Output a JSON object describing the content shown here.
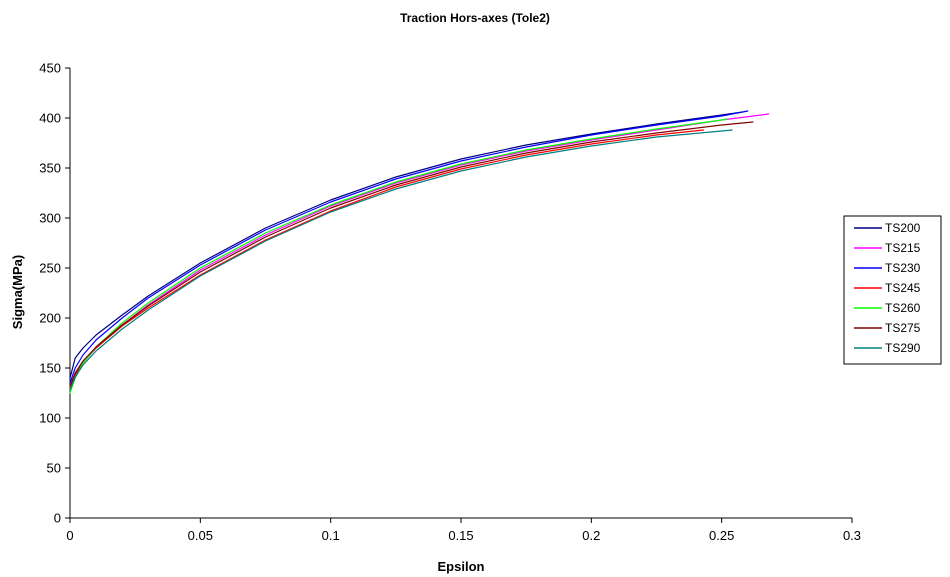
{
  "chart_data": {
    "type": "line",
    "title": "Traction Hors-axes (Tole2)",
    "xlabel": "Epsilon",
    "ylabel": "Sigma(MPa)",
    "xlim": [
      0,
      0.3
    ],
    "ylim": [
      0,
      450
    ],
    "x_ticks": [
      0,
      0.05,
      0.1,
      0.15,
      0.2,
      0.25,
      0.3
    ],
    "x_tick_labels": [
      "0",
      "0.05",
      "0.1",
      "0.15",
      "0.2",
      "0.25",
      "0.3"
    ],
    "y_ticks": [
      0,
      50,
      100,
      150,
      200,
      250,
      300,
      350,
      400,
      450
    ],
    "y_tick_labels": [
      "0",
      "50",
      "100",
      "150",
      "200",
      "250",
      "300",
      "350",
      "400",
      "450"
    ],
    "grid": false,
    "legend_position": "right",
    "series": [
      {
        "name": "TS200",
        "color": "#000080",
        "x": [
          0,
          0.002,
          0.005,
          0.01,
          0.02,
          0.03,
          0.05,
          0.075,
          0.1,
          0.125,
          0.15,
          0.175,
          0.2,
          0.225,
          0.25,
          0.258
        ],
        "y": [
          140,
          160,
          170,
          183,
          203,
          222,
          255,
          290,
          318,
          341,
          359,
          373,
          384,
          394,
          403,
          406
        ]
      },
      {
        "name": "TS215",
        "color": "#ff00ff",
        "x": [
          0,
          0.002,
          0.005,
          0.01,
          0.02,
          0.03,
          0.05,
          0.075,
          0.1,
          0.125,
          0.15,
          0.175,
          0.2,
          0.225,
          0.25,
          0.268
        ],
        "y": [
          128,
          142,
          155,
          170,
          193,
          213,
          248,
          283,
          312,
          335,
          353,
          367,
          378,
          388,
          398,
          404
        ]
      },
      {
        "name": "TS230",
        "color": "#0000ff",
        "x": [
          0,
          0.002,
          0.005,
          0.01,
          0.02,
          0.03,
          0.05,
          0.075,
          0.1,
          0.125,
          0.15,
          0.175,
          0.2,
          0.225,
          0.25,
          0.26
        ],
        "y": [
          135,
          150,
          163,
          178,
          200,
          220,
          253,
          288,
          316,
          339,
          357,
          371,
          383,
          393,
          402,
          407
        ]
      },
      {
        "name": "TS245",
        "color": "#ff0000",
        "x": [
          0,
          0.002,
          0.005,
          0.01,
          0.02,
          0.03,
          0.05,
          0.075,
          0.1,
          0.125,
          0.15,
          0.175,
          0.2,
          0.225,
          0.243
        ],
        "y": [
          130,
          143,
          156,
          170,
          192,
          210,
          243,
          278,
          307,
          331,
          349,
          363,
          374,
          383,
          388
        ]
      },
      {
        "name": "TS260",
        "color": "#00ff00",
        "x": [
          0,
          0.002,
          0.005,
          0.01,
          0.02,
          0.03,
          0.05,
          0.075,
          0.1,
          0.125,
          0.15,
          0.175,
          0.2,
          0.225,
          0.25,
          0.252
        ],
        "y": [
          125,
          140,
          155,
          171,
          195,
          215,
          250,
          285,
          313,
          336,
          354,
          368,
          379,
          389,
          398,
          399
        ]
      },
      {
        "name": "TS275",
        "color": "#800000",
        "x": [
          0,
          0.002,
          0.005,
          0.01,
          0.02,
          0.03,
          0.05,
          0.075,
          0.1,
          0.125,
          0.15,
          0.175,
          0.2,
          0.225,
          0.25,
          0.262
        ],
        "y": [
          132,
          145,
          157,
          171,
          193,
          212,
          246,
          281,
          310,
          333,
          351,
          365,
          376,
          385,
          393,
          396
        ]
      },
      {
        "name": "TS290",
        "color": "#008080",
        "x": [
          0,
          0.002,
          0.005,
          0.01,
          0.02,
          0.03,
          0.05,
          0.075,
          0.1,
          0.125,
          0.15,
          0.175,
          0.2,
          0.225,
          0.25,
          0.254
        ],
        "y": [
          128,
          141,
          153,
          167,
          189,
          208,
          242,
          277,
          306,
          329,
          347,
          361,
          372,
          381,
          387,
          388
        ]
      }
    ]
  }
}
